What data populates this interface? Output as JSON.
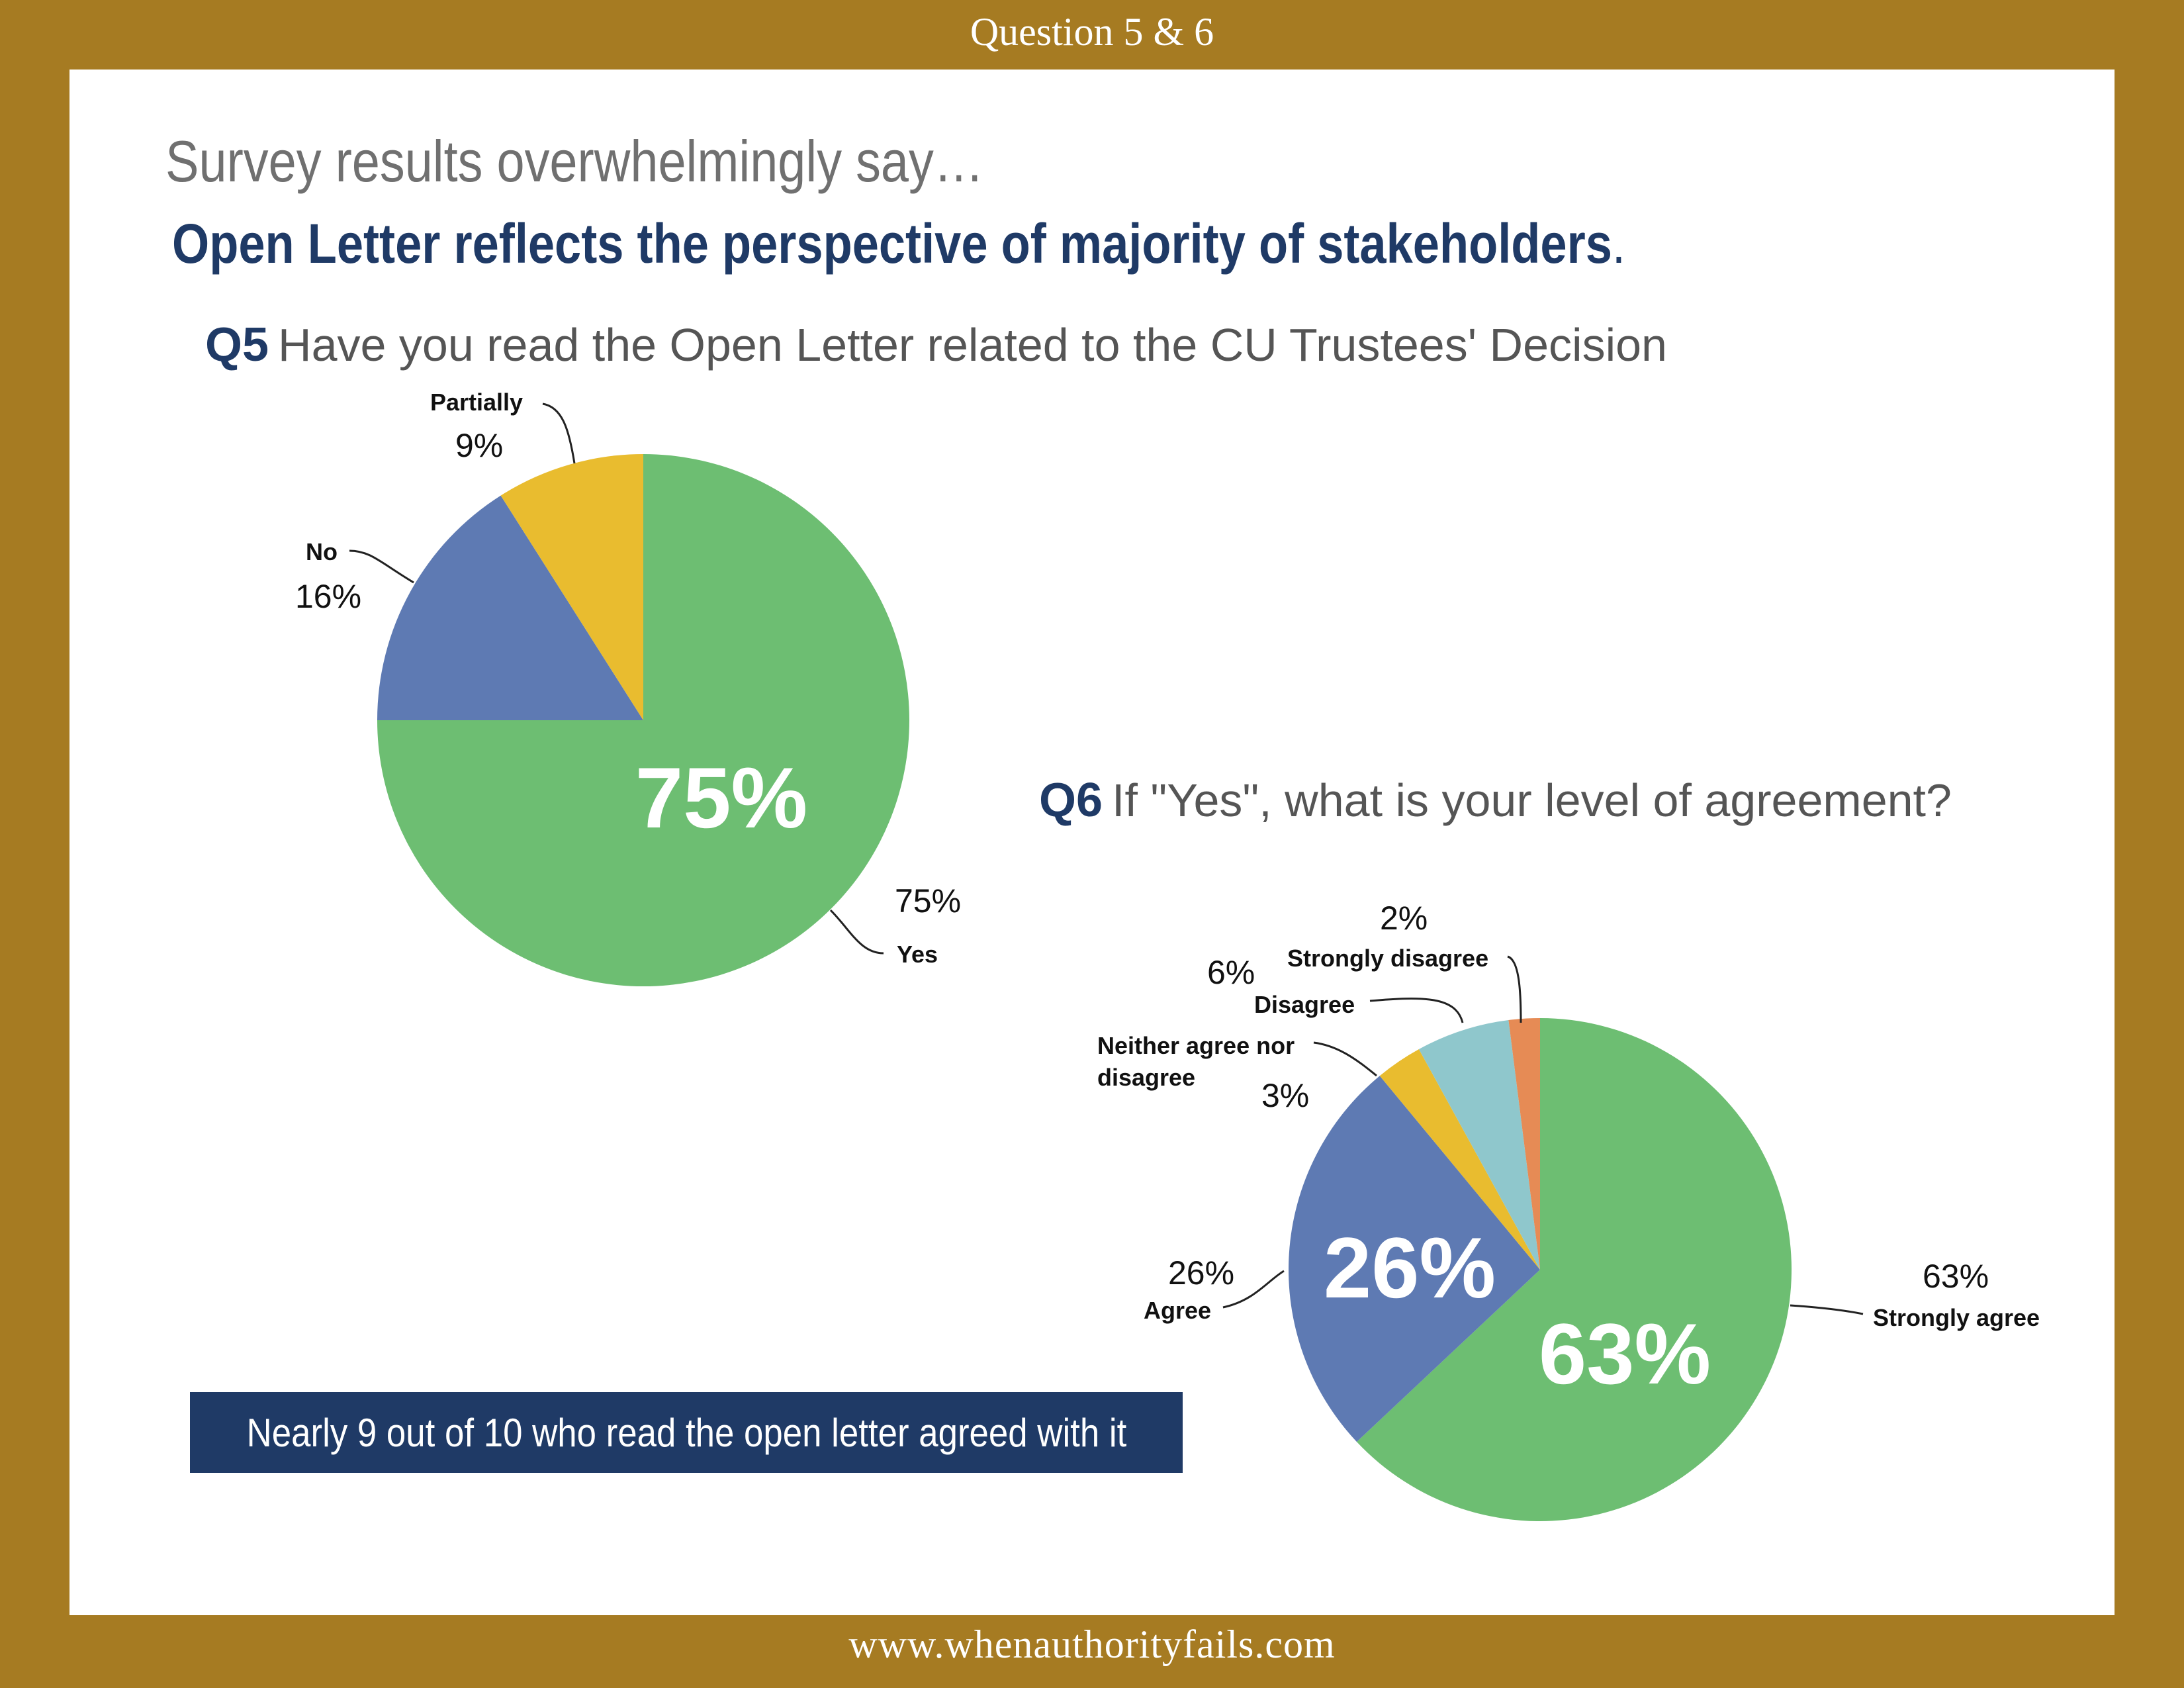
{
  "header": {
    "title": "Question 5 & 6"
  },
  "footer": {
    "url": "www.whenauthorityfails.com"
  },
  "slide": {
    "subtitle": "Survey results overwhelmingly say…",
    "headline": "Open Letter reflects the perspective of majority of stakeholders",
    "headline_end": ".",
    "callout": "Nearly 9 out of 10 who read the open letter agreed with it"
  },
  "colors": {
    "frame": "#A67B22",
    "navy": "#1F3A66",
    "green": "#6DBE72",
    "blue": "#5E7AB3",
    "yellow": "#E9BC2F",
    "teal": "#8FC7CC",
    "orange": "#E68B55"
  },
  "chart_data": [
    {
      "type": "pie",
      "question_number": "Q5",
      "title": "Have you read the Open Letter related to the CU Trustees' Decision",
      "big_label": "75%",
      "slices": [
        {
          "label": "Yes",
          "value": 75,
          "display": "75%",
          "color": "#6DBE72"
        },
        {
          "label": "No",
          "value": 16,
          "display": "16%",
          "color": "#5E7AB3"
        },
        {
          "label": "Partially",
          "value": 9,
          "display": "9%",
          "color": "#E9BC2F"
        }
      ]
    },
    {
      "type": "pie",
      "question_number": "Q6",
      "title": "If \"Yes\", what is your level of agreement?",
      "big_labels": [
        "63%",
        "26%"
      ],
      "slices": [
        {
          "label": "Strongly agree",
          "value": 63,
          "display": "63%",
          "color": "#6DBE72"
        },
        {
          "label": "Agree",
          "value": 26,
          "display": "26%",
          "color": "#5E7AB3"
        },
        {
          "label": "Neither agree nor disagree",
          "label_lines": [
            "Neither agree nor",
            "disagree"
          ],
          "value": 3,
          "display": "3%",
          "color": "#E9BC2F"
        },
        {
          "label": "Disagree",
          "value": 6,
          "display": "6%",
          "color": "#8FC7CC"
        },
        {
          "label": "Strongly disagree",
          "value": 2,
          "display": "2%",
          "color": "#E68B55"
        }
      ]
    }
  ]
}
